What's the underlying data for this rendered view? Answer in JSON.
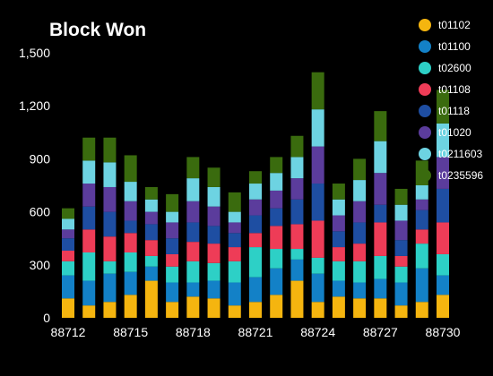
{
  "chart_data": {
    "type": "bar",
    "stacked": true,
    "title": "Block Won",
    "xlabel": "",
    "ylabel": "",
    "ylim": [
      0,
      1500
    ],
    "y_ticks": [
      "0",
      "300",
      "600",
      "900",
      "1,200",
      "1,500"
    ],
    "y_tick_values": [
      0,
      300,
      600,
      900,
      1200,
      1500
    ],
    "categories": [
      88712,
      88713,
      88714,
      88715,
      88716,
      88717,
      88718,
      88719,
      88720,
      88721,
      88722,
      88723,
      88724,
      88725,
      88726,
      88727,
      88728,
      88729,
      88730
    ],
    "x_tick_labels": [
      "88712",
      "88715",
      "88718",
      "88721",
      "88724",
      "88727",
      "88730"
    ],
    "x_tick_values": [
      88712,
      88715,
      88718,
      88721,
      88724,
      88727,
      88730
    ],
    "grid": false,
    "legend_position": "right",
    "series": [
      {
        "name": "t01102",
        "color": "#f5b50f",
        "values": [
          110,
          70,
          90,
          130,
          210,
          90,
          120,
          110,
          70,
          90,
          130,
          210,
          90,
          120,
          110,
          110,
          70,
          90,
          130
        ]
      },
      {
        "name": "t01100",
        "color": "#1381c7",
        "values": [
          130,
          140,
          160,
          130,
          80,
          110,
          80,
          100,
          130,
          140,
          150,
          120,
          160,
          90,
          90,
          110,
          130,
          190,
          110
        ]
      },
      {
        "name": "t02600",
        "color": "#2dd0c6",
        "values": [
          80,
          160,
          70,
          110,
          60,
          90,
          120,
          100,
          120,
          170,
          110,
          60,
          90,
          110,
          120,
          130,
          90,
          140,
          120
        ]
      },
      {
        "name": "t01108",
        "color": "#ee3c57",
        "values": [
          60,
          130,
          140,
          110,
          90,
          70,
          110,
          110,
          80,
          80,
          130,
          140,
          210,
          80,
          100,
          190,
          60,
          80,
          180
        ]
      },
      {
        "name": "t01118",
        "color": "#1e4ea2",
        "values": [
          70,
          130,
          140,
          70,
          90,
          90,
          110,
          100,
          80,
          100,
          100,
          140,
          210,
          90,
          120,
          100,
          90,
          110,
          190
        ]
      },
      {
        "name": "t01020",
        "color": "#5b3c9c",
        "values": [
          50,
          130,
          140,
          110,
          70,
          90,
          120,
          110,
          60,
          90,
          100,
          120,
          210,
          90,
          120,
          180,
          110,
          60,
          180
        ]
      },
      {
        "name": "t0211603",
        "color": "#6dd3e2",
        "values": [
          60,
          130,
          140,
          110,
          70,
          60,
          130,
          110,
          60,
          90,
          100,
          120,
          210,
          90,
          120,
          180,
          90,
          80,
          190
        ]
      },
      {
        "name": "t0235596",
        "color": "#3a6b0e",
        "values": [
          60,
          130,
          140,
          150,
          70,
          100,
          120,
          110,
          110,
          70,
          90,
          120,
          210,
          90,
          120,
          170,
          90,
          140,
          190
        ]
      }
    ]
  }
}
